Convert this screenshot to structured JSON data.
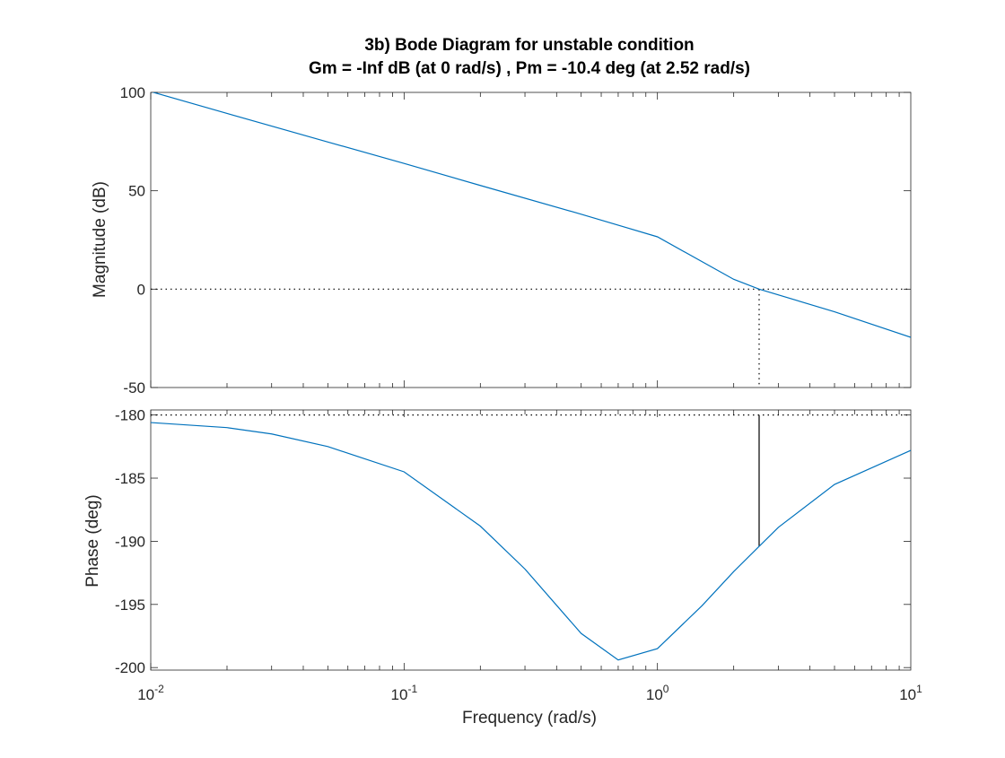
{
  "chart_data": {
    "type": "line",
    "title": "3b) Bode Diagram for unstable condition",
    "subtitle": "Gm = -Inf dB (at 0 rad/s) ,  Pm = -10.4 deg (at 2.52 rad/s)",
    "xlabel": "Frequency  (rad/s)",
    "xscale": "log",
    "xlim": [
      0.01,
      10
    ],
    "x_ticks": [
      {
        "base": "10",
        "exp": "-2",
        "value": 0.01
      },
      {
        "base": "10",
        "exp": "-1",
        "value": 0.1
      },
      {
        "base": "10",
        "exp": "0",
        "value": 1
      },
      {
        "base": "10",
        "exp": "1",
        "value": 10
      }
    ],
    "grid": false,
    "color": "#0072BD",
    "reference_color": "#000000",
    "magnitude": {
      "ylabel": "Magnitude (dB)",
      "ylim": [
        -50,
        100
      ],
      "yticks": [
        "100",
        "50",
        "0",
        "-50"
      ],
      "reference_line_db": 0,
      "series": [
        {
          "x": [
            0.01,
            0.02,
            0.05,
            0.1,
            0.2,
            0.5,
            1,
            2,
            2.52,
            5,
            10
          ],
          "y": [
            100.4,
            89.3,
            74.8,
            63.9,
            52.7,
            38.1,
            26.6,
            5.0,
            0.0,
            -11.5,
            -24.5
          ]
        }
      ]
    },
    "phase": {
      "ylabel": "Phase (deg)",
      "ylim": [
        -200.2,
        -179.6
      ],
      "yticks": [
        "-180",
        "-185",
        "-190",
        "-195",
        "-200"
      ],
      "reference_line_deg": -180,
      "series": [
        {
          "x": [
            0.01,
            0.02,
            0.03,
            0.05,
            0.1,
            0.2,
            0.3,
            0.5,
            0.7,
            1,
            1.5,
            2,
            2.52,
            3,
            5,
            10
          ],
          "y": [
            -180.6,
            -181.0,
            -181.5,
            -182.5,
            -184.5,
            -188.8,
            -192.2,
            -197.3,
            -199.4,
            -198.5,
            -195.1,
            -192.4,
            -190.4,
            -188.9,
            -185.5,
            -182.8
          ]
        }
      ]
    },
    "crossover": {
      "frequency": 2.52,
      "phase": -190.4
    }
  }
}
